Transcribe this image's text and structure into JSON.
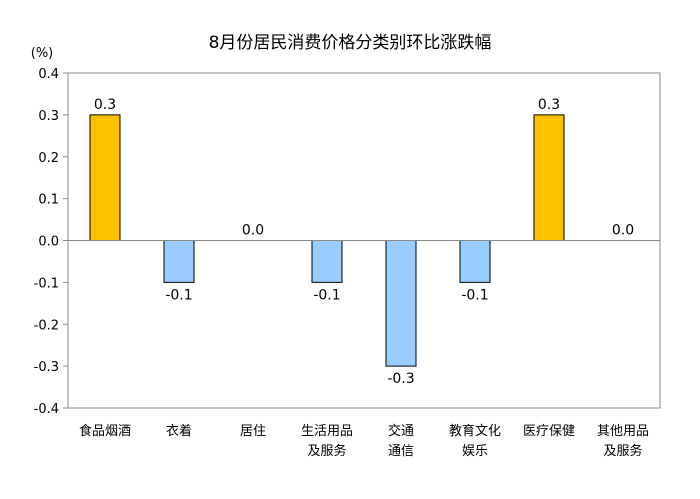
{
  "chart_data": {
    "type": "bar",
    "title": "8月份居民消费价格分类别环比涨跌幅",
    "ylabel": "(%)",
    "xlabel": "",
    "ylim": [
      -0.4,
      0.4
    ],
    "yticks": [
      "0.4",
      "0.3",
      "0.2",
      "0.1",
      "0.0",
      "-0.1",
      "-0.2",
      "-0.3",
      "-0.4"
    ],
    "categories": [
      [
        "食品烟酒"
      ],
      [
        "衣着"
      ],
      [
        "居住"
      ],
      [
        "生活用品",
        "及服务"
      ],
      [
        "交通",
        "通信"
      ],
      [
        "教育文化",
        "娱乐"
      ],
      [
        "医疗保健"
      ],
      [
        "其他用品",
        "及服务"
      ]
    ],
    "values": [
      0.3,
      -0.1,
      0.0,
      -0.1,
      -0.3,
      -0.1,
      0.3,
      0.0
    ],
    "value_labels": [
      "0.3",
      "-0.1",
      "0.0",
      "-0.1",
      "-0.3",
      "-0.1",
      "0.3",
      "0.0"
    ],
    "grid": false,
    "colors": {
      "positive": "#FFC000",
      "negative": "#99CCFF",
      "border": "#000000",
      "frame": "#888888"
    }
  }
}
